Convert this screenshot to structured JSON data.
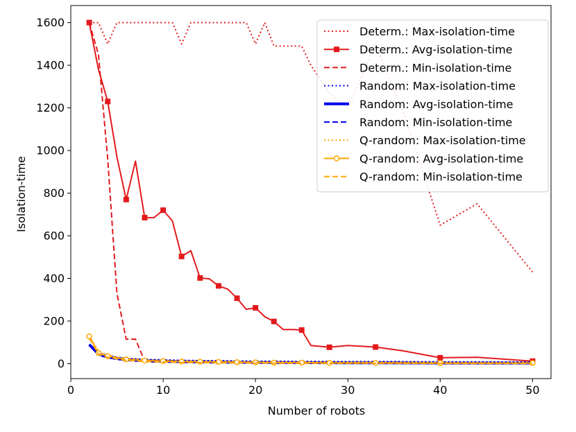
{
  "chart_data": {
    "type": "line",
    "title": "",
    "xlabel": "Number of robots",
    "ylabel": "Isolation-time",
    "xlim": [
      0,
      52
    ],
    "ylim": [
      -70,
      1680
    ],
    "xticks": [
      0,
      10,
      20,
      30,
      40,
      50
    ],
    "yticks": [
      0,
      200,
      400,
      600,
      800,
      1000,
      1200,
      1400,
      1600
    ],
    "grid": false,
    "legend_position": "top-right",
    "series": [
      {
        "name": "Determ.: Max-isolation-time",
        "color": "#e31a1c",
        "line_style": "dotted",
        "line_width": 2,
        "marker": "none",
        "x": [
          2,
          3,
          4,
          5,
          6,
          7,
          8,
          9,
          10,
          11,
          12,
          13,
          14,
          15,
          16,
          17,
          18,
          19,
          20,
          21,
          22,
          23,
          24,
          25,
          26,
          28,
          30,
          33,
          36,
          40,
          44,
          50
        ],
        "y": [
          1600,
          1600,
          1500,
          1600,
          1600,
          1600,
          1600,
          1600,
          1600,
          1600,
          1500,
          1600,
          1600,
          1600,
          1600,
          1600,
          1600,
          1600,
          1500,
          1600,
          1490,
          1490,
          1490,
          1490,
          1400,
          1270,
          1200,
          1500,
          1180,
          650,
          750,
          430
        ]
      },
      {
        "name": "Determ.: Avg-isolation-time",
        "color": "#e31a1c",
        "line_style": "solid",
        "line_width": 2,
        "marker": "square",
        "x": [
          2,
          3,
          4,
          5,
          6,
          7,
          8,
          9,
          10,
          11,
          12,
          13,
          14,
          15,
          16,
          17,
          18,
          19,
          20,
          21,
          22,
          23,
          24,
          25,
          26,
          28,
          30,
          33,
          36,
          40,
          44,
          50
        ],
        "y": [
          1600,
          1380,
          1230,
          970,
          770,
          950,
          685,
          685,
          720,
          670,
          503,
          530,
          402,
          398,
          365,
          350,
          307,
          255,
          262,
          220,
          198,
          160,
          160,
          158,
          85,
          77,
          85,
          78,
          60,
          28,
          30,
          12
        ],
        "marker_x": [
          2,
          4,
          6,
          8,
          10,
          12,
          14,
          16,
          18,
          20,
          22,
          25,
          28,
          33,
          40,
          50
        ]
      },
      {
        "name": "Determ.: Min-isolation-time",
        "color": "#e31a1c",
        "line_style": "dashed",
        "line_width": 2,
        "marker": "none",
        "x": [
          2,
          3,
          4,
          5,
          6,
          7,
          8,
          9,
          10,
          12,
          14,
          16,
          18,
          20,
          25,
          30,
          35,
          40,
          45,
          50
        ],
        "y": [
          1600,
          1450,
          960,
          330,
          115,
          115,
          12,
          8,
          8,
          6,
          5,
          5,
          4,
          4,
          3,
          3,
          2,
          2,
          2,
          2
        ]
      },
      {
        "name": "Random: Max-isolation-time",
        "color": "#0000ee",
        "line_style": "dotted",
        "line_width": 2,
        "marker": "none",
        "x": [
          2,
          3,
          4,
          5,
          6,
          8,
          10,
          12,
          14,
          16,
          18,
          20,
          25,
          30,
          35,
          40,
          45,
          50
        ],
        "y": [
          90,
          50,
          40,
          30,
          25,
          20,
          18,
          16,
          15,
          14,
          13,
          12,
          11,
          10,
          10,
          9,
          9,
          8
        ]
      },
      {
        "name": "Random: Avg-isolation-time",
        "color": "#0000ee",
        "line_style": "solid",
        "line_width": 4,
        "marker": "none",
        "x": [
          2,
          3,
          4,
          5,
          6,
          8,
          10,
          12,
          14,
          16,
          18,
          20,
          25,
          30,
          35,
          40,
          45,
          50
        ],
        "y": [
          90,
          45,
          32,
          25,
          20,
          15,
          12,
          10,
          9,
          8,
          7,
          6,
          5,
          4,
          4,
          3,
          3,
          3
        ]
      },
      {
        "name": "Random: Min-isolation-time",
        "color": "#0000ee",
        "line_style": "dashed",
        "line_width": 2,
        "marker": "none",
        "x": [
          2,
          3,
          4,
          5,
          6,
          8,
          10,
          12,
          14,
          16,
          18,
          20,
          25,
          30,
          35,
          40,
          45,
          50
        ],
        "y": [
          85,
          40,
          28,
          20,
          15,
          10,
          8,
          6,
          5,
          4,
          3,
          3,
          2,
          2,
          1,
          1,
          1,
          1
        ]
      },
      {
        "name": "Q-random: Max-isolation-time",
        "color": "#ffa500",
        "line_style": "dotted",
        "line_width": 2,
        "marker": "none",
        "x": [
          2,
          3,
          4,
          5,
          6,
          8,
          10,
          12,
          14,
          16,
          18,
          20,
          25,
          30,
          35,
          40,
          45,
          50
        ],
        "y": [
          130,
          60,
          40,
          32,
          25,
          18,
          15,
          13,
          12,
          11,
          10,
          9,
          8,
          7,
          6,
          6,
          5,
          5
        ]
      },
      {
        "name": "Q-random: Avg-isolation-time",
        "color": "#ffa500",
        "line_style": "solid",
        "line_width": 2,
        "marker": "circle",
        "x": [
          2,
          3,
          4,
          6,
          8,
          10,
          12,
          14,
          16,
          18,
          20,
          22,
          25,
          28,
          33,
          40,
          50
        ],
        "y": [
          128,
          50,
          35,
          20,
          15,
          12,
          10,
          9,
          8,
          7,
          6,
          5,
          5,
          4,
          4,
          3,
          3
        ],
        "marker_x": [
          2,
          3,
          4,
          6,
          8,
          10,
          12,
          14,
          16,
          18,
          20,
          22,
          25,
          28,
          33,
          40,
          50
        ]
      },
      {
        "name": "Q-random: Min-isolation-time",
        "color": "#ffa500",
        "line_style": "dashed",
        "line_width": 2,
        "marker": "none",
        "x": [
          2,
          3,
          4,
          6,
          8,
          10,
          12,
          14,
          16,
          18,
          20,
          25,
          30,
          35,
          40,
          45,
          50
        ],
        "y": [
          120,
          45,
          30,
          16,
          11,
          8,
          6,
          5,
          4,
          4,
          3,
          2,
          2,
          2,
          1,
          1,
          1
        ]
      }
    ]
  }
}
